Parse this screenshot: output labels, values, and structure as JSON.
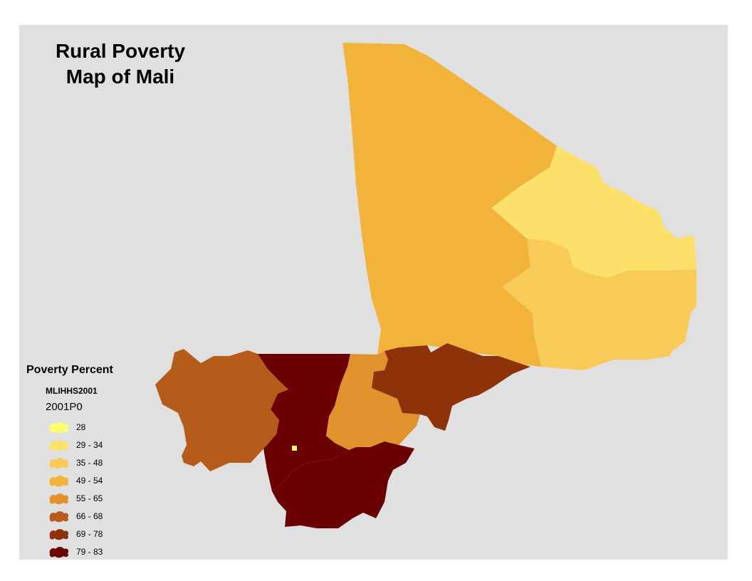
{
  "map": {
    "title_line1": "Rural Poverty",
    "title_line2": "Map of Mali",
    "background_color": "#e0e0e0"
  },
  "legend": {
    "title": "Poverty Percent",
    "layer": "MLIHHS2001",
    "field": "2001P0",
    "classes": [
      {
        "label": "28",
        "color": "#fcfc6c"
      },
      {
        "label": "29 - 34",
        "color": "#fbe06a"
      },
      {
        "label": "35 - 48",
        "color": "#f8cb58"
      },
      {
        "label": "49 - 54",
        "color": "#f2b33a"
      },
      {
        "label": "55 - 65",
        "color": "#e1922d"
      },
      {
        "label": "66 - 68",
        "color": "#b65c1a"
      },
      {
        "label": "69 - 78",
        "color": "#8e320a"
      },
      {
        "label": "79 - 83",
        "color": "#6b0000"
      }
    ]
  }
}
